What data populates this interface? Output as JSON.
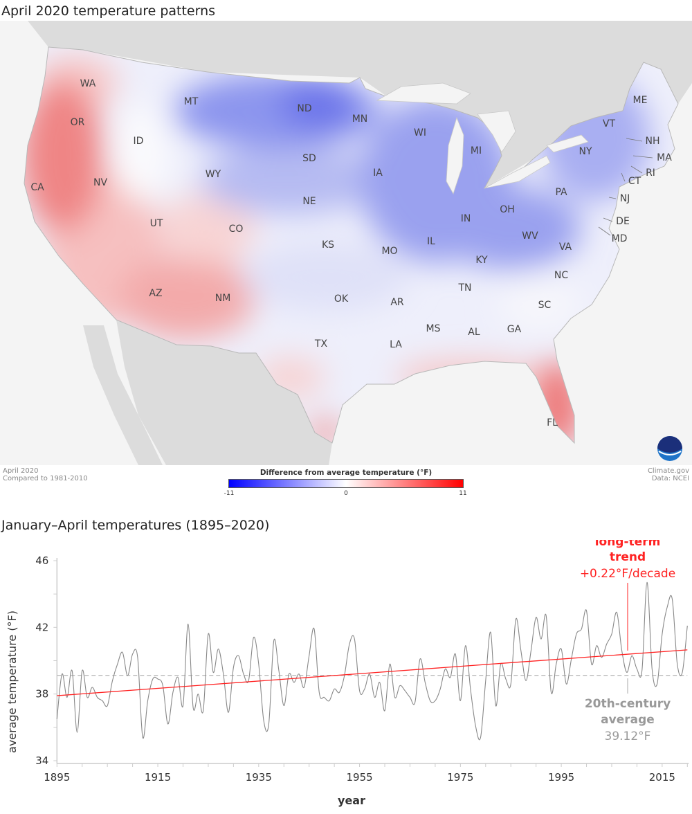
{
  "map": {
    "title": "April 2020 temperature patterns",
    "footer_left": [
      "April 2020",
      "Compared to 1981-2010"
    ],
    "footer_right": [
      "Climate.gov",
      "Data: NCEI"
    ],
    "logo": "NOAA",
    "legend": {
      "title": "Difference from average temperature (°F)",
      "min_label": "-11",
      "mid_label": "0",
      "max_label": "11",
      "colors": {
        "cold": "#0000ff",
        "neutral": "#ffffff",
        "warm": "#ff0000"
      }
    },
    "states": [
      "WA",
      "OR",
      "CA",
      "ID",
      "NV",
      "MT",
      "WY",
      "UT",
      "AZ",
      "CO",
      "NM",
      "ND",
      "SD",
      "NE",
      "KS",
      "OK",
      "TX",
      "MN",
      "IA",
      "MO",
      "AR",
      "LA",
      "WI",
      "IL",
      "MI",
      "IN",
      "OH",
      "KY",
      "TN",
      "MS",
      "AL",
      "GA",
      "FL",
      "SC",
      "NC",
      "VA",
      "WV",
      "PA",
      "NY",
      "VT",
      "ME",
      "NH",
      "MA",
      "RI",
      "CT",
      "NJ",
      "DE",
      "MD"
    ]
  },
  "chart_data": {
    "type": "line",
    "title": "January–April temperatures (1895–2020)",
    "xlabel": "year",
    "ylabel": "average temperature (°F)",
    "xlim": [
      1895,
      2020
    ],
    "ylim": [
      34,
      46
    ],
    "x_ticks": [
      "1895",
      "1915",
      "1935",
      "1955",
      "1975",
      "1995",
      "2015"
    ],
    "y_ticks": [
      "34",
      "38",
      "42",
      "46"
    ],
    "grid": false,
    "x_start": 1895,
    "values": [
      36.5,
      39.2,
      37.8,
      39.4,
      35.7,
      39.4,
      37.8,
      38.4,
      37.8,
      37.6,
      37.3,
      38.8,
      39.8,
      40.5,
      39.1,
      40.4,
      40.2,
      35.4,
      37.6,
      38.9,
      38.9,
      38.5,
      36.2,
      38.1,
      39.0,
      37.3,
      42.2,
      37.2,
      38.0,
      37.0,
      41.6,
      39.3,
      40.7,
      39.2,
      36.9,
      39.6,
      40.3,
      39.2,
      38.8,
      41.4,
      39.8,
      36.4,
      36.2,
      41.2,
      39.4,
      37.3,
      39.2,
      38.7,
      39.2,
      38.4,
      40.3,
      41.9,
      38.1,
      37.8,
      37.6,
      38.3,
      38.1,
      39.1,
      41.0,
      41.3,
      38.2,
      38.3,
      39.2,
      37.8,
      38.7,
      37.0,
      39.8,
      37.8,
      38.5,
      38.2,
      37.8,
      37.5,
      40.1,
      38.7,
      37.6,
      37.6,
      38.3,
      39.5,
      39.0,
      40.4,
      37.6,
      40.9,
      38.3,
      36.1,
      35.4,
      38.8,
      41.7,
      37.3,
      39.8,
      38.9,
      38.6,
      42.5,
      40.6,
      38.8,
      40.6,
      42.6,
      41.3,
      42.7,
      38.1,
      39.8,
      40.7,
      38.6,
      40.1,
      41.6,
      41.9,
      43.0,
      39.8,
      40.9,
      40.2,
      41.0,
      41.6,
      42.9,
      40.6,
      39.3,
      40.3,
      39.5,
      39.4,
      44.7,
      39.5,
      38.6,
      41.6,
      43.2,
      43.7,
      39.8,
      39.3,
      42.1
    ],
    "trend": {
      "label_line1": "long-term",
      "label_line2": "trend",
      "label_line3": "+0.22°F/decade",
      "start_value": 37.9,
      "end_value": 40.65,
      "color": "#ff2222"
    },
    "average": {
      "label_line1": "20th-century",
      "label_line2": "average",
      "label_line3": "39.12°F",
      "value": 39.12,
      "color": "#999999"
    },
    "line_color": "#888888"
  }
}
